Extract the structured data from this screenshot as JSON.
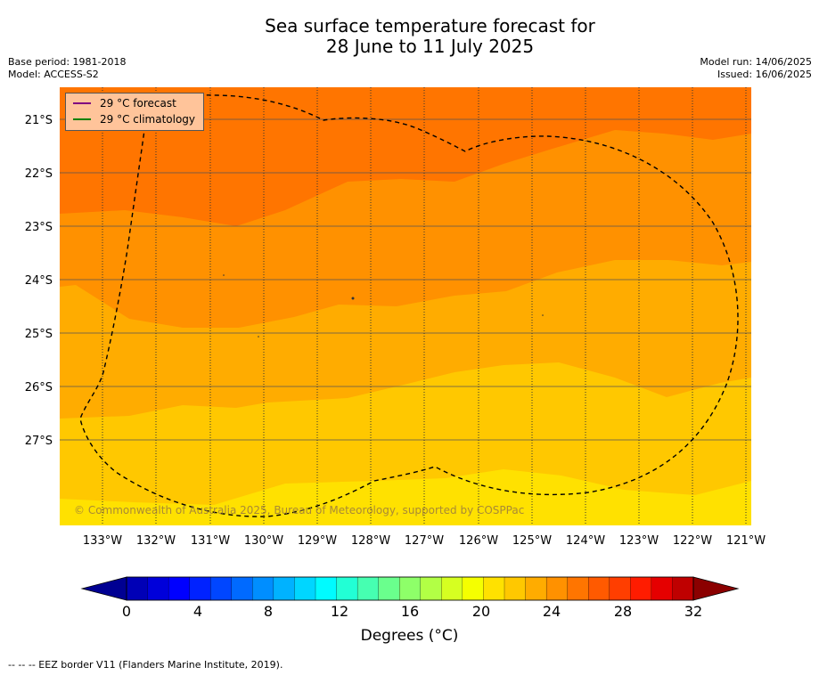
{
  "title": {
    "line1": "Sea surface temperature forecast for",
    "line2": "28 June to 11 July 2025"
  },
  "meta": {
    "base_period": "Base period: 1981-2018",
    "model": "Model: ACCESS-S2",
    "model_run": "Model run: 14/06/2025",
    "issued": "Issued: 16/06/2025"
  },
  "legend": [
    {
      "label": "29 °C  forecast",
      "color": "#800080"
    },
    {
      "label": "29 °C  climatology",
      "color": "#008000"
    }
  ],
  "lat_labels": [
    "21°S",
    "22°S",
    "23°S",
    "24°S",
    "25°S",
    "26°S",
    "27°S"
  ],
  "lon_labels": [
    "133°W",
    "132°W",
    "131°W",
    "130°W",
    "129°W",
    "128°W",
    "127°W",
    "126°W",
    "125°W",
    "124°W",
    "123°W",
    "122°W",
    "121°W"
  ],
  "watermark": "© Commonwealth of Australia 2025, Bureau of Meteorology, supported by COSPPac",
  "colorbar": {
    "tick_labels": [
      "0",
      "4",
      "8",
      "12",
      "16",
      "20",
      "24",
      "28",
      "32"
    ],
    "units": "Degrees (°C)",
    "colors": [
      "#000092",
      "#0000b6",
      "#0000da",
      "#0000ff",
      "#0022ff",
      "#0046ff",
      "#006aff",
      "#008eff",
      "#00b2ff",
      "#00d6ff",
      "#00fbff",
      "#22ffd5",
      "#46ffb1",
      "#6aff8d",
      "#8eff69",
      "#b2ff45",
      "#d6ff21",
      "#f5ff00",
      "#ffe100",
      "#ffc800",
      "#ffac00",
      "#ff9100",
      "#ff7500",
      "#ff5a00",
      "#ff3e00",
      "#ff1c00",
      "#e50000",
      "#bf0000",
      "#8b0000"
    ]
  },
  "footnote": "--  --  -- EEZ border V11 (Flanders Marine Institute, 2019)."
}
